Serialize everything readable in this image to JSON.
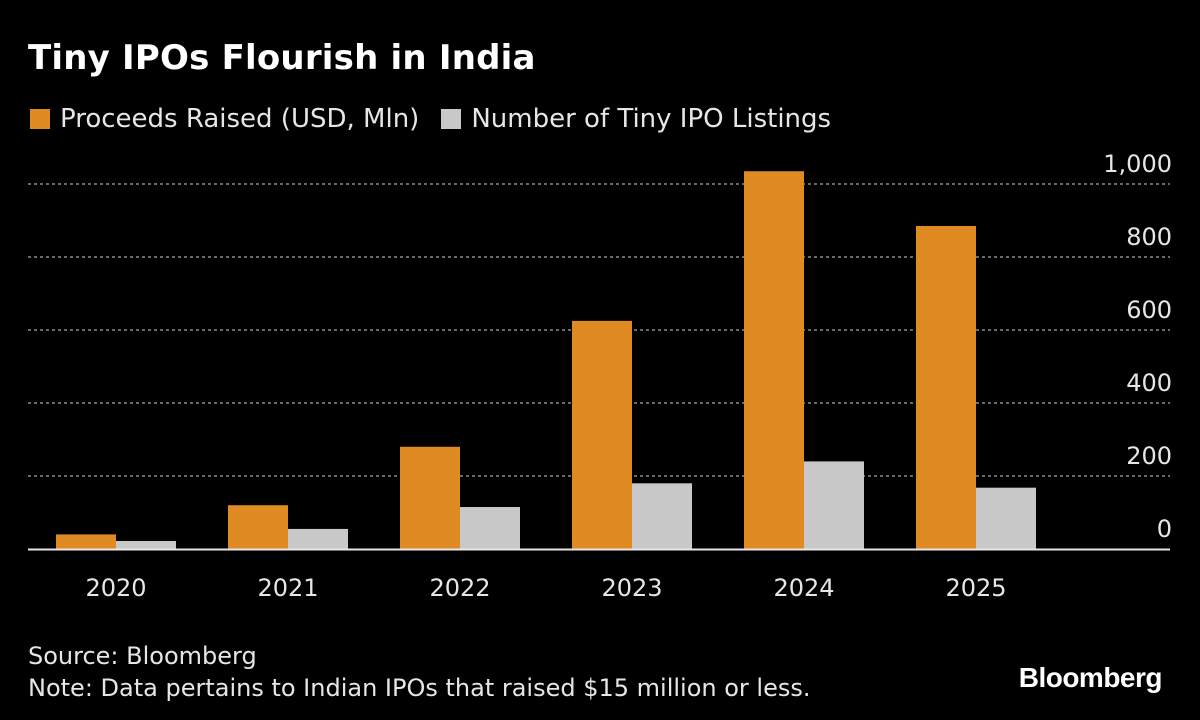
{
  "title": "Tiny IPOs Flourish in India",
  "legend": {
    "items": [
      {
        "label": "Proceeds Raised (USD, Mln)",
        "color": "#e08a23"
      },
      {
        "label": "Number of Tiny IPO Listings",
        "color": "#c8c8c8"
      }
    ]
  },
  "chart_data": {
    "type": "bar",
    "title": "Tiny IPOs Flourish in India",
    "categories": [
      "2020",
      "2021",
      "2022",
      "2023",
      "2024",
      "2025"
    ],
    "series": [
      {
        "name": "Proceeds Raised (USD, Mln)",
        "color": "#e08a23",
        "values": [
          40,
          120,
          280,
          625,
          1035,
          885
        ]
      },
      {
        "name": "Number of Tiny IPO Listings",
        "color": "#c8c8c8",
        "values": [
          22,
          55,
          115,
          180,
          240,
          168
        ]
      }
    ],
    "ylim": [
      0,
      1000
    ],
    "yticks": [
      0,
      200,
      400,
      600,
      800,
      1000
    ],
    "ytick_labels": [
      "0",
      "200",
      "400",
      "600",
      "800",
      "1,000"
    ],
    "xlabel": "",
    "ylabel": "",
    "grid": true,
    "y_axis_position": "right"
  },
  "footer": {
    "source": "Source: Bloomberg",
    "note": "Note: Data pertains to Indian IPOs that raised $15 million or less."
  },
  "brand": "Bloomberg",
  "colors": {
    "background": "#000000",
    "grid": "#8a8a8a",
    "axis": "#e6e6e6"
  }
}
